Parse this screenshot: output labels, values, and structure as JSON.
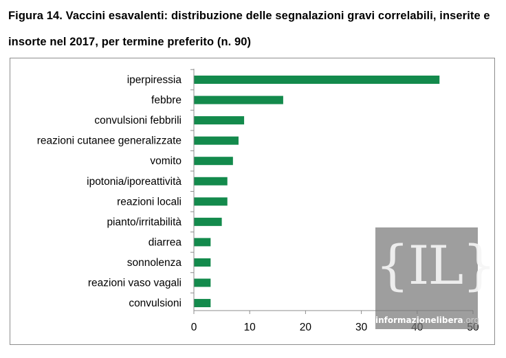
{
  "title": "Figura 14. Vaccini esavalenti: distribuzione delle segnalazioni gravi correlabili, inserite e insorte nel 2017, per termine preferito (n. 90)",
  "watermark": {
    "glyph": "{IL}",
    "brand": "informazionelibera",
    "tld": ".org"
  },
  "colors": {
    "bar": "#138a4c",
    "axis": "#8c8c8c"
  },
  "chart_data": {
    "type": "bar",
    "orientation": "horizontal",
    "categories": [
      "iperpiressia",
      "febbre",
      "convulsioni febbrili",
      "reazioni cutanee generalizzate",
      "vomito",
      "ipotonia/iporeattività",
      "reazioni locali",
      "pianto/irritabilità",
      "diarrea",
      "sonnolenza",
      "reazioni vaso vagali",
      "convulsioni"
    ],
    "values": [
      44,
      16,
      9,
      8,
      7,
      6,
      6,
      5,
      3,
      3,
      3,
      3
    ],
    "xlim": [
      0,
      50
    ],
    "xticks": [
      0,
      10,
      20,
      30,
      40,
      50
    ],
    "grid": false,
    "legend": "none"
  }
}
